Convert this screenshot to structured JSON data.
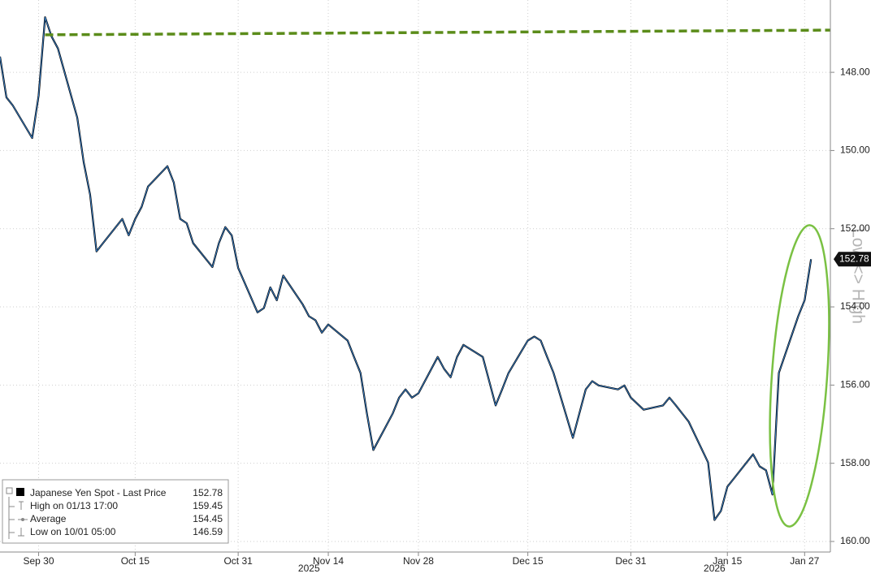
{
  "chart_data": {
    "type": "line",
    "axis_label": "Low <> High",
    "color": "#000000",
    "highlight_color": "#3a86d4",
    "xlim": [
      "2025-09-24",
      "2026-01-31"
    ],
    "ylim": [
      160.27,
      146.15
    ],
    "yticks": [
      {
        "value": 148,
        "label": "148.00"
      },
      {
        "value": 150,
        "label": "150.00"
      },
      {
        "value": 152,
        "label": "152.00"
      },
      {
        "value": 154,
        "label": "154.00"
      },
      {
        "value": 156,
        "label": "156.00"
      },
      {
        "value": 158,
        "label": "158.00"
      },
      {
        "value": 160,
        "label": "160.00"
      }
    ],
    "xticks": [
      {
        "value": "2025-09-30",
        "label": "Sep 30"
      },
      {
        "value": "2025-10-15",
        "label": "Oct 15"
      },
      {
        "value": "2025-10-31",
        "label": "Oct 31"
      },
      {
        "value": "2025-11-14",
        "label": "Nov 14"
      },
      {
        "value": "2025-11-28",
        "label": "Nov 28"
      },
      {
        "value": "2025-12-15",
        "label": "Dec 15"
      },
      {
        "value": "2025-12-31",
        "label": "Dec 31"
      },
      {
        "value": "2026-01-15",
        "label": "Jan 15"
      },
      {
        "value": "2026-01-27",
        "label": "Jan 27"
      }
    ],
    "year_labels": [
      {
        "value": "2025-11-11",
        "label": "2025"
      },
      {
        "value": "2026-01-13",
        "label": "2026"
      }
    ],
    "grid": true,
    "x": [
      "2025-09-24",
      "2025-09-25",
      "2025-09-26",
      "2025-09-29",
      "2025-09-30",
      "2025-10-01",
      "2025-10-02",
      "2025-10-03",
      "2025-10-06",
      "2025-10-07",
      "2025-10-08",
      "2025-10-09",
      "2025-10-10",
      "2025-10-13",
      "2025-10-14",
      "2025-10-15",
      "2025-10-16",
      "2025-10-17",
      "2025-10-20",
      "2025-10-21",
      "2025-10-22",
      "2025-10-23",
      "2025-10-24",
      "2025-10-27",
      "2025-10-28",
      "2025-10-29",
      "2025-10-30",
      "2025-10-31",
      "2025-11-03",
      "2025-11-04",
      "2025-11-05",
      "2025-11-06",
      "2025-11-07",
      "2025-11-10",
      "2025-11-11",
      "2025-11-12",
      "2025-11-13",
      "2025-11-14",
      "2025-11-17",
      "2025-11-18",
      "2025-11-19",
      "2025-11-20",
      "2025-11-21",
      "2025-11-24",
      "2025-11-25",
      "2025-11-26",
      "2025-11-27",
      "2025-11-28",
      "2025-12-01",
      "2025-12-02",
      "2025-12-03",
      "2025-12-04",
      "2025-12-05",
      "2025-12-08",
      "2025-12-09",
      "2025-12-10",
      "2025-12-11",
      "2025-12-12",
      "2025-12-15",
      "2025-12-16",
      "2025-12-17",
      "2025-12-18",
      "2025-12-19",
      "2025-12-22",
      "2025-12-23",
      "2025-12-24",
      "2025-12-25",
      "2025-12-26",
      "2025-12-29",
      "2025-12-30",
      "2025-12-31",
      "2026-01-02",
      "2026-01-05",
      "2026-01-06",
      "2026-01-07",
      "2026-01-08",
      "2026-01-09",
      "2026-01-12",
      "2026-01-13",
      "2026-01-14",
      "2026-01-15",
      "2026-01-16",
      "2026-01-19",
      "2026-01-20",
      "2026-01-21",
      "2026-01-22",
      "2026-01-23",
      "2026-01-26",
      "2026-01-27",
      "2026-01-28"
    ],
    "values": [
      147.6,
      148.64,
      148.85,
      149.68,
      148.6,
      146.59,
      147.08,
      147.39,
      149.16,
      150.3,
      151.13,
      152.58,
      152.37,
      151.75,
      152.17,
      151.75,
      151.44,
      150.92,
      150.4,
      150.82,
      151.75,
      151.86,
      152.37,
      152.98,
      152.37,
      151.96,
      152.17,
      153.0,
      154.14,
      154.03,
      153.5,
      153.83,
      153.2,
      153.93,
      154.24,
      154.34,
      154.66,
      154.45,
      154.86,
      155.28,
      155.69,
      156.73,
      157.66,
      156.73,
      156.32,
      156.11,
      156.32,
      156.21,
      155.28,
      155.59,
      155.8,
      155.28,
      154.97,
      155.28,
      155.9,
      156.52,
      156.11,
      155.69,
      154.86,
      154.76,
      154.86,
      155.28,
      155.69,
      157.35,
      156.73,
      156.11,
      155.9,
      156.01,
      156.11,
      156.01,
      156.32,
      156.63,
      156.52,
      156.32,
      156.52,
      156.73,
      156.94,
      157.98,
      159.45,
      159.22,
      158.6,
      158.39,
      157.77,
      158.08,
      158.18,
      158.8,
      155.69,
      154.24,
      153.83,
      152.78
    ],
    "reference_line": {
      "x": [
        "2025-10-01",
        "2026-01-31"
      ],
      "values": [
        147.04,
        146.92
      ],
      "color": "#5b8c1a"
    },
    "last_price": 152.78,
    "legend": [
      {
        "label": "Japanese Yen Spot - Last Price",
        "value": 152.78
      },
      {
        "label": "High on 01/13 17:00",
        "value": 159.45
      },
      {
        "label": "Average",
        "value": 154.45
      },
      {
        "label": "Low on 10/01 05:00",
        "value": 146.59
      }
    ]
  }
}
